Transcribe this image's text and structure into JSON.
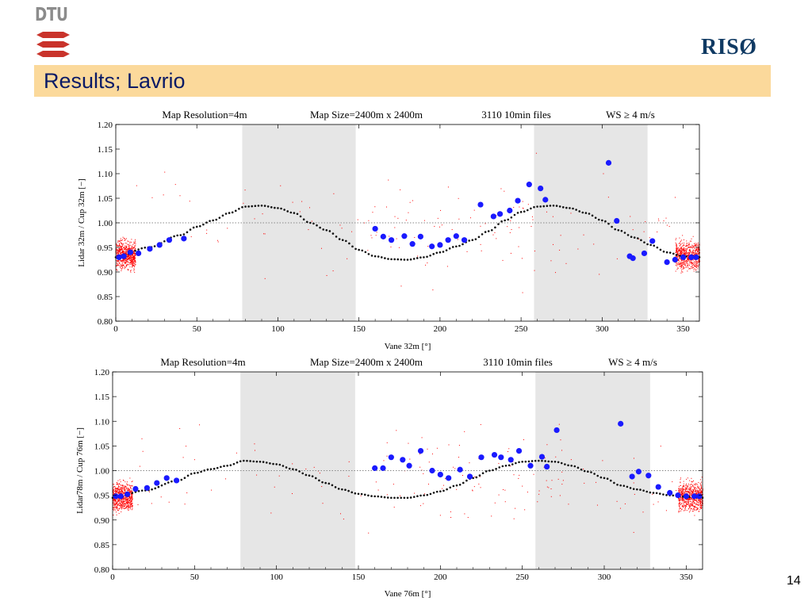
{
  "slide": {
    "title": "Results; Lavrio",
    "page_number": "14",
    "logo_left": "DTU",
    "logo_right": "RISØ"
  },
  "colors": {
    "title_bar": "#fbd99b",
    "title_text": "#0a1a66",
    "dtu_red": "#c9332b",
    "shade": "#e6e6e6",
    "model": "#111111",
    "binned": "#1a1aff",
    "raw": "#ff0000"
  },
  "chart_data": [
    {
      "type": "scatter",
      "header": [
        "Map Resolution=4m",
        "Map Size=2400m x 2400m",
        "3110 10min files",
        "WS ≥ 4 m/s"
      ],
      "xlabel": "Vane 32m [°]",
      "ylabel": "Lidar 32m  /  Cup 32m  [−]",
      "xlim": [
        0,
        360
      ],
      "ylim": [
        0.8,
        1.2
      ],
      "xticks": [
        0,
        50,
        100,
        150,
        200,
        250,
        300,
        350
      ],
      "yticks": [
        "0.80",
        "0.85",
        "0.90",
        "0.95",
        "1.00",
        "1.05",
        "1.10",
        "1.15",
        "1.20"
      ],
      "reference_line": 1.0,
      "shaded_sectors": [
        [
          78,
          148
        ],
        [
          258,
          328
        ]
      ],
      "model_curve": {
        "x": [
          0,
          20,
          40,
          50,
          60,
          70,
          80,
          90,
          100,
          110,
          120,
          130,
          140,
          150,
          160,
          170,
          180,
          190,
          200,
          210,
          220,
          230,
          240,
          250,
          260,
          270,
          280,
          290,
          300,
          310,
          320,
          330,
          340,
          350,
          360
        ],
        "y": [
          0.93,
          0.95,
          0.975,
          0.992,
          1.005,
          1.02,
          1.033,
          1.035,
          1.03,
          1.02,
          1.0,
          0.985,
          0.965,
          0.945,
          0.932,
          0.926,
          0.925,
          0.93,
          0.94,
          0.952,
          0.965,
          0.983,
          1.005,
          1.022,
          1.033,
          1.035,
          1.03,
          1.02,
          1.005,
          0.985,
          0.97,
          0.955,
          0.94,
          0.932,
          0.93
        ]
      },
      "binned_points": {
        "x": [
          2,
          5,
          9,
          14,
          21,
          27,
          33,
          42,
          160,
          165,
          170,
          178,
          183,
          188,
          195,
          200,
          205,
          210,
          215,
          225,
          233,
          237,
          243,
          248,
          255,
          262,
          265,
          304,
          309,
          317,
          319,
          326,
          331,
          340,
          345,
          350,
          355,
          358
        ],
        "y": [
          0.93,
          0.932,
          0.94,
          0.938,
          0.947,
          0.955,
          0.965,
          0.968,
          0.988,
          0.972,
          0.965,
          0.973,
          0.957,
          0.972,
          0.952,
          0.955,
          0.965,
          0.973,
          0.965,
          1.037,
          1.013,
          1.018,
          1.025,
          1.045,
          1.078,
          1.07,
          1.047,
          1.122,
          1.004,
          0.932,
          0.928,
          0.938,
          0.963,
          0.92,
          0.925,
          0.93,
          0.93,
          0.93
        ]
      },
      "raw_scatter": {
        "center": 0.935,
        "spread": 0.025,
        "x_ranges": [
          [
            0,
            12
          ],
          [
            345,
            360
          ]
        ]
      }
    },
    {
      "type": "scatter",
      "header": [
        "Map Resolution=4m",
        "Map Size=2400m x 2400m",
        "3110 10min files",
        "WS ≥ 4 m/s"
      ],
      "xlabel": "Vane 76m [°]",
      "ylabel": "Lidar78m  /  Cup 76m  [−]",
      "xlim": [
        0,
        360
      ],
      "ylim": [
        0.8,
        1.2
      ],
      "xticks": [
        0,
        50,
        100,
        150,
        200,
        250,
        300,
        350
      ],
      "yticks": [
        "0.80",
        "0.85",
        "0.90",
        "0.95",
        "1.00",
        "1.05",
        "1.10",
        "1.15",
        "1.20"
      ],
      "reference_line": 1.0,
      "shaded_sectors": [
        [
          78,
          148
        ],
        [
          258,
          328
        ]
      ],
      "model_curve": {
        "x": [
          0,
          20,
          40,
          50,
          60,
          70,
          80,
          90,
          100,
          110,
          120,
          130,
          140,
          150,
          160,
          170,
          180,
          190,
          200,
          210,
          220,
          230,
          240,
          250,
          260,
          270,
          280,
          290,
          300,
          310,
          320,
          330,
          340,
          350,
          360
        ],
        "y": [
          0.945,
          0.96,
          0.98,
          0.995,
          1.003,
          1.01,
          1.02,
          1.018,
          1.013,
          1.003,
          0.99,
          0.975,
          0.962,
          0.953,
          0.948,
          0.945,
          0.945,
          0.95,
          0.958,
          0.97,
          0.985,
          1.0,
          1.01,
          1.018,
          1.02,
          1.018,
          1.01,
          0.998,
          0.985,
          0.97,
          0.962,
          0.955,
          0.95,
          0.947,
          0.945
        ]
      },
      "binned_points": {
        "x": [
          2,
          5,
          9,
          14,
          21,
          27,
          33,
          39,
          160,
          165,
          170,
          177,
          181,
          188,
          195,
          200,
          205,
          212,
          218,
          225,
          233,
          237,
          243,
          248,
          255,
          262,
          265,
          271,
          310,
          317,
          321,
          327,
          333,
          340,
          345,
          350,
          355,
          358
        ],
        "y": [
          0.948,
          0.948,
          0.952,
          0.963,
          0.965,
          0.975,
          0.985,
          0.98,
          1.005,
          1.005,
          1.027,
          1.022,
          1.01,
          1.04,
          1.0,
          0.992,
          0.985,
          1.002,
          0.988,
          1.027,
          1.032,
          1.027,
          1.022,
          1.04,
          1.01,
          1.028,
          1.008,
          1.082,
          1.095,
          0.988,
          0.998,
          0.99,
          0.967,
          0.955,
          0.95,
          0.948,
          0.948,
          0.948
        ]
      },
      "raw_scatter": {
        "center": 0.948,
        "spread": 0.025,
        "x_ranges": [
          [
            0,
            12
          ],
          [
            345,
            360
          ]
        ]
      }
    }
  ]
}
